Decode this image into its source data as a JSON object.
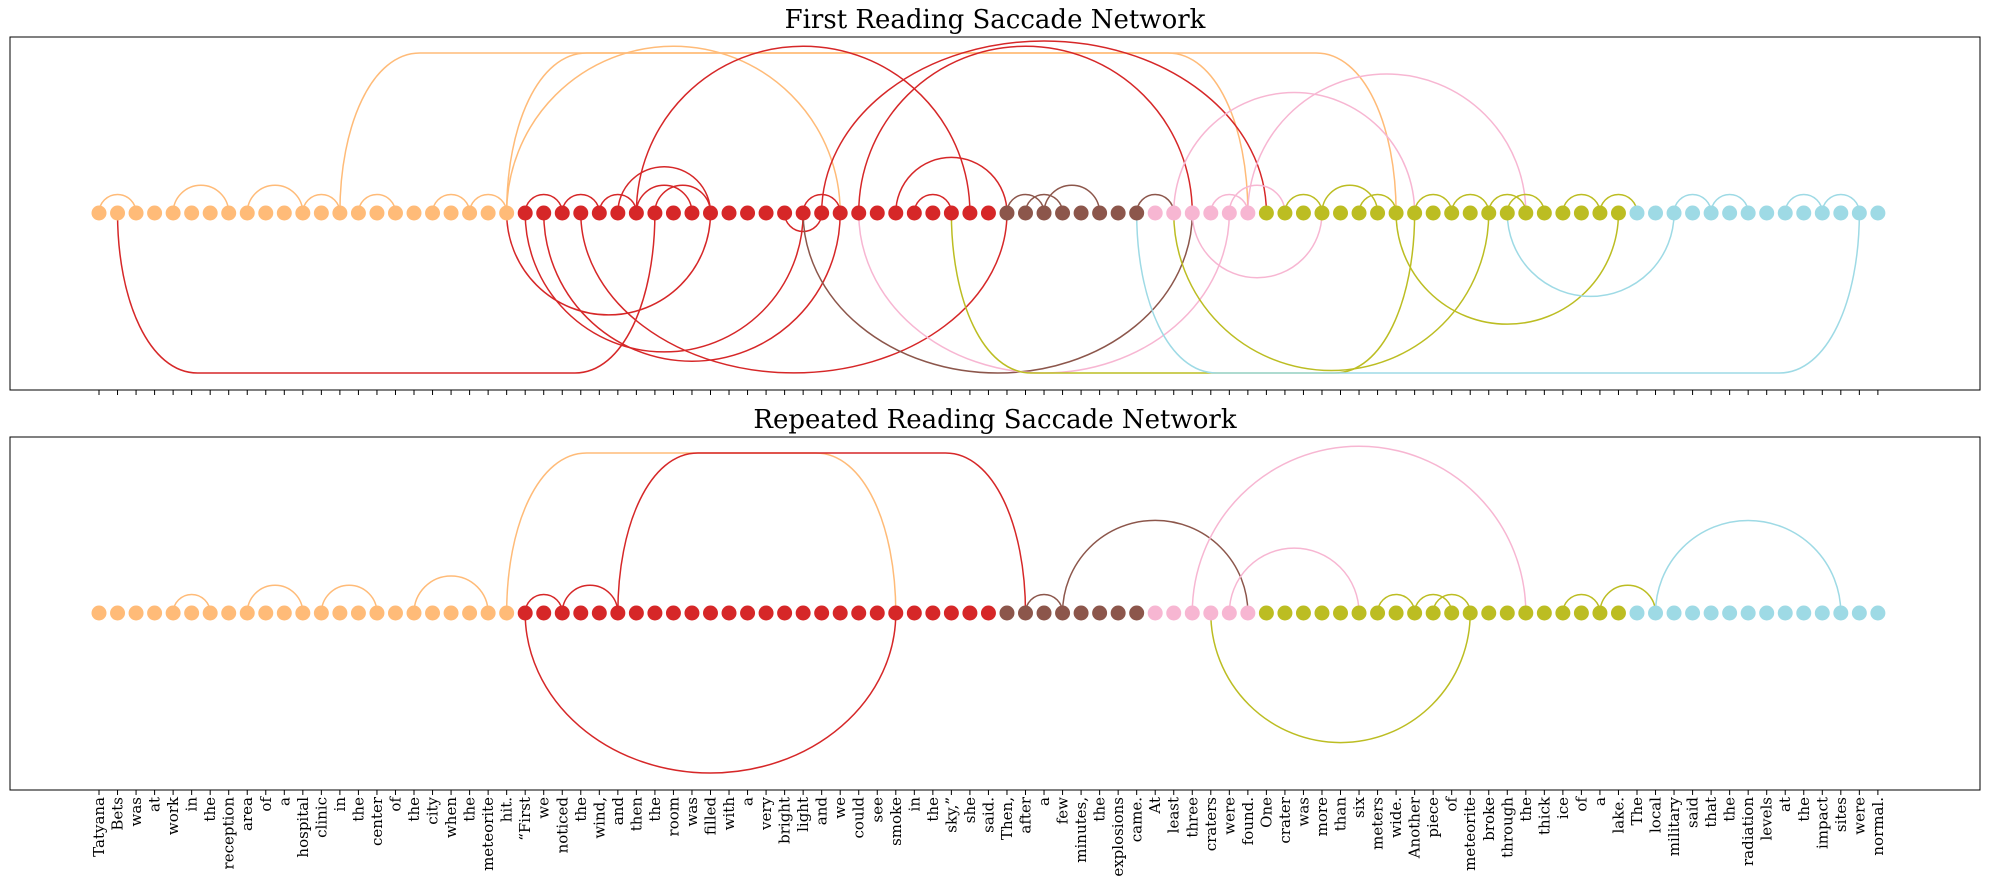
{
  "chart_data": {
    "type": "arc-network",
    "words": [
      "Tatyana",
      "Bets",
      "was",
      "at",
      "work",
      "in",
      "the",
      "reception",
      "area",
      "of",
      "a",
      "hospital",
      "clinic",
      "in",
      "the",
      "center",
      "of",
      "the",
      "city",
      "when",
      "the",
      "meteorite",
      "hit.",
      "“First",
      "we",
      "noticed",
      "the",
      "wind,",
      "and",
      "then",
      "the",
      "room",
      "was",
      "filled",
      "with",
      "a",
      "very",
      "bright",
      "light",
      "and",
      "we",
      "could",
      "see",
      "smoke",
      "in",
      "the",
      "sky,”",
      "she",
      "said.",
      "Then,",
      "after",
      "a",
      "few",
      "minutes,",
      "the",
      "explosions",
      "came.",
      "At",
      "least",
      "three",
      "craters",
      "were",
      "found.",
      "One",
      "crater",
      "was",
      "more",
      "than",
      "six",
      "meters",
      "wide.",
      "Another",
      "piece",
      "of",
      "meteorite",
      "broke",
      "through",
      "the",
      "thick",
      "ice",
      "of",
      "a",
      "lake.",
      "The",
      "local",
      "military",
      "said",
      "that",
      "the",
      "radiation",
      "levels",
      "at",
      "the",
      "impact",
      "sites",
      "were",
      "normal."
    ],
    "sentence_colors": [
      "#ffbb78",
      "#d62728",
      "#8c564b",
      "#f7b6d2",
      "#bcbd22",
      "#9edae5"
    ],
    "sentence_breaks": [
      0,
      23,
      49,
      57,
      63,
      83
    ],
    "panels": [
      {
        "title": "First Reading Saccade Network",
        "arcs": [
          {
            "from": 0,
            "to": 2,
            "color": "#ffbb78",
            "side": "up"
          },
          {
            "from": 1,
            "to": 30,
            "color": "#d62728",
            "side": "down",
            "flat": true
          },
          {
            "from": 4,
            "to": 7,
            "color": "#ffbb78",
            "side": "up"
          },
          {
            "from": 8,
            "to": 11,
            "color": "#ffbb78",
            "side": "up"
          },
          {
            "from": 11,
            "to": 13,
            "color": "#ffbb78",
            "side": "up"
          },
          {
            "from": 13,
            "to": 62,
            "color": "#ffbb78",
            "side": "up",
            "flat": true
          },
          {
            "from": 14,
            "to": 16,
            "color": "#ffbb78",
            "side": "up"
          },
          {
            "from": 18,
            "to": 20,
            "color": "#ffbb78",
            "side": "up"
          },
          {
            "from": 20,
            "to": 22,
            "color": "#ffbb78",
            "side": "up"
          },
          {
            "from": 22,
            "to": 70,
            "color": "#ffbb78",
            "side": "up",
            "flat": true
          },
          {
            "from": 22,
            "to": 40,
            "color": "#ffbb78",
            "side": "up"
          },
          {
            "from": 23,
            "to": 25,
            "color": "#d62728",
            "side": "up"
          },
          {
            "from": 25,
            "to": 27,
            "color": "#d62728",
            "side": "up"
          },
          {
            "from": 27,
            "to": 29,
            "color": "#d62728",
            "side": "up"
          },
          {
            "from": 28,
            "to": 33,
            "color": "#d62728",
            "side": "up"
          },
          {
            "from": 29,
            "to": 32,
            "color": "#d62728",
            "side": "up"
          },
          {
            "from": 30,
            "to": 33,
            "color": "#d62728",
            "side": "up"
          },
          {
            "from": 22,
            "to": 33,
            "color": "#d62728",
            "side": "down"
          },
          {
            "from": 23,
            "to": 38,
            "color": "#d62728",
            "side": "down"
          },
          {
            "from": 24,
            "to": 40,
            "color": "#d62728",
            "side": "down"
          },
          {
            "from": 26,
            "to": 49,
            "color": "#d62728",
            "side": "down"
          },
          {
            "from": 29,
            "to": 47,
            "color": "#d62728",
            "side": "up"
          },
          {
            "from": 37,
            "to": 39,
            "color": "#d62728",
            "side": "down"
          },
          {
            "from": 38,
            "to": 40,
            "color": "#d62728",
            "side": "up"
          },
          {
            "from": 39,
            "to": 63,
            "color": "#d62728",
            "side": "up"
          },
          {
            "from": 41,
            "to": 59,
            "color": "#d62728",
            "side": "up"
          },
          {
            "from": 43,
            "to": 49,
            "color": "#d62728",
            "side": "up"
          },
          {
            "from": 44,
            "to": 46,
            "color": "#d62728",
            "side": "up"
          },
          {
            "from": 38,
            "to": 59,
            "color": "#8c564b",
            "side": "down"
          },
          {
            "from": 49,
            "to": 51,
            "color": "#8c564b",
            "side": "up"
          },
          {
            "from": 50,
            "to": 52,
            "color": "#8c564b",
            "side": "up"
          },
          {
            "from": 51,
            "to": 54,
            "color": "#8c564b",
            "side": "up"
          },
          {
            "from": 56,
            "to": 58,
            "color": "#8c564b",
            "side": "up"
          },
          {
            "from": 41,
            "to": 61,
            "color": "#f7b6d2",
            "side": "down"
          },
          {
            "from": 58,
            "to": 71,
            "color": "#f7b6d2",
            "side": "up"
          },
          {
            "from": 60,
            "to": 62,
            "color": "#f7b6d2",
            "side": "up"
          },
          {
            "from": 61,
            "to": 64,
            "color": "#f7b6d2",
            "side": "up"
          },
          {
            "from": 62,
            "to": 77,
            "color": "#f7b6d2",
            "side": "up"
          },
          {
            "from": 59,
            "to": 66,
            "color": "#f7b6d2",
            "side": "down"
          },
          {
            "from": 46,
            "to": 71,
            "color": "#bcbd22",
            "side": "down",
            "flat": true
          },
          {
            "from": 58,
            "to": 75,
            "color": "#bcbd22",
            "side": "down"
          },
          {
            "from": 64,
            "to": 66,
            "color": "#bcbd22",
            "side": "up"
          },
          {
            "from": 66,
            "to": 69,
            "color": "#bcbd22",
            "side": "up"
          },
          {
            "from": 68,
            "to": 70,
            "color": "#bcbd22",
            "side": "up"
          },
          {
            "from": 71,
            "to": 73,
            "color": "#bcbd22",
            "side": "up"
          },
          {
            "from": 73,
            "to": 75,
            "color": "#bcbd22",
            "side": "up"
          },
          {
            "from": 75,
            "to": 77,
            "color": "#bcbd22",
            "side": "up"
          },
          {
            "from": 70,
            "to": 82,
            "color": "#bcbd22",
            "side": "down"
          },
          {
            "from": 76,
            "to": 78,
            "color": "#bcbd22",
            "side": "up"
          },
          {
            "from": 79,
            "to": 81,
            "color": "#bcbd22",
            "side": "up"
          },
          {
            "from": 81,
            "to": 83,
            "color": "#bcbd22",
            "side": "up"
          },
          {
            "from": 76,
            "to": 85,
            "color": "#9edae5",
            "side": "down"
          },
          {
            "from": 56,
            "to": 95,
            "color": "#9edae5",
            "side": "down",
            "flat": true
          },
          {
            "from": 85,
            "to": 87,
            "color": "#9edae5",
            "side": "up"
          },
          {
            "from": 87,
            "to": 89,
            "color": "#9edae5",
            "side": "up"
          },
          {
            "from": 91,
            "to": 93,
            "color": "#9edae5",
            "side": "up"
          },
          {
            "from": 93,
            "to": 95,
            "color": "#9edae5",
            "side": "up"
          }
        ]
      },
      {
        "title": "Repeated Reading Saccade Network",
        "arcs": [
          {
            "from": 4,
            "to": 6,
            "color": "#ffbb78",
            "side": "up"
          },
          {
            "from": 8,
            "to": 11,
            "color": "#ffbb78",
            "side": "up"
          },
          {
            "from": 12,
            "to": 15,
            "color": "#ffbb78",
            "side": "up"
          },
          {
            "from": 17,
            "to": 21,
            "color": "#ffbb78",
            "side": "up"
          },
          {
            "from": 22,
            "to": 43,
            "color": "#ffbb78",
            "side": "up",
            "flat": true
          },
          {
            "from": 23,
            "to": 25,
            "color": "#d62728",
            "side": "up"
          },
          {
            "from": 25,
            "to": 28,
            "color": "#d62728",
            "side": "up"
          },
          {
            "from": 28,
            "to": 50,
            "color": "#d62728",
            "side": "up",
            "flat": true
          },
          {
            "from": 23,
            "to": 43,
            "color": "#d62728",
            "side": "down"
          },
          {
            "from": 50,
            "to": 52,
            "color": "#8c564b",
            "side": "up"
          },
          {
            "from": 52,
            "to": 62,
            "color": "#8c564b",
            "side": "up"
          },
          {
            "from": 59,
            "to": 77,
            "color": "#f7b6d2",
            "side": "up"
          },
          {
            "from": 61,
            "to": 68,
            "color": "#f7b6d2",
            "side": "up"
          },
          {
            "from": 60,
            "to": 74,
            "color": "#bcbd22",
            "side": "down"
          },
          {
            "from": 69,
            "to": 71,
            "color": "#bcbd22",
            "side": "up"
          },
          {
            "from": 71,
            "to": 73,
            "color": "#bcbd22",
            "side": "up"
          },
          {
            "from": 72,
            "to": 74,
            "color": "#bcbd22",
            "side": "up"
          },
          {
            "from": 79,
            "to": 81,
            "color": "#bcbd22",
            "side": "up"
          },
          {
            "from": 81,
            "to": 84,
            "color": "#bcbd22",
            "side": "up"
          },
          {
            "from": 84,
            "to": 94,
            "color": "#9edae5",
            "side": "up"
          }
        ]
      }
    ]
  }
}
